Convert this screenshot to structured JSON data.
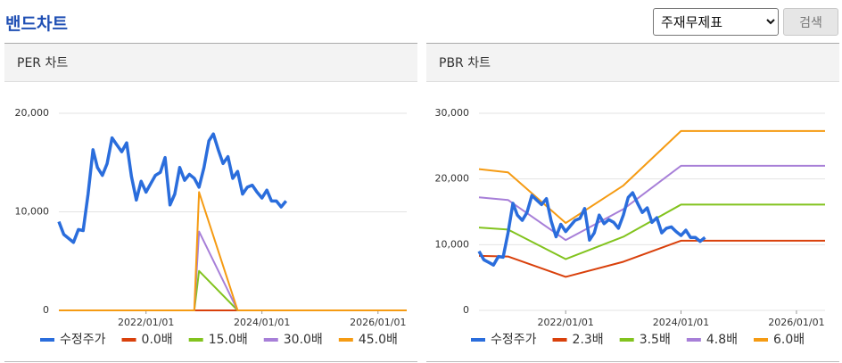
{
  "header": {
    "title": "밴드차트",
    "select": "주재무제표",
    "button": "검색"
  },
  "chart_data": [
    {
      "type": "line",
      "title": "PER 차트",
      "xlim": [
        "2020/07/01",
        "2026/07/01"
      ],
      "xticks": [
        "2022/01/01",
        "2024/01/01",
        "2026/01/01"
      ],
      "ylim": [
        0,
        20000
      ],
      "yticks": [
        0,
        {
          "value": 10000,
          "label": "10,000"
        },
        {
          "value": 20000,
          "label": "20,000"
        }
      ],
      "grid": true,
      "legend": "bottom",
      "series": [
        {
          "name": "수정주가",
          "color": "#2a6ddc",
          "x": [
            "2020/07/01",
            "2020/08/01",
            "2020/09/01",
            "2020/10/01",
            "2020/11/01",
            "2020/12/01",
            "2021/01/01",
            "2021/02/01",
            "2021/03/01",
            "2021/04/01",
            "2021/05/01",
            "2021/06/01",
            "2021/07/01",
            "2021/08/01",
            "2021/09/01",
            "2021/10/01",
            "2021/11/01",
            "2021/12/01",
            "2022/01/01",
            "2022/02/01",
            "2022/03/01",
            "2022/04/01",
            "2022/05/01",
            "2022/06/01",
            "2022/07/01",
            "2022/08/01",
            "2022/09/01",
            "2022/10/01",
            "2022/11/01",
            "2022/12/01",
            "2023/01/01",
            "2023/02/01",
            "2023/03/01",
            "2023/04/01",
            "2023/05/01",
            "2023/06/01",
            "2023/07/01",
            "2023/08/01",
            "2023/09/01",
            "2023/10/01",
            "2023/11/01",
            "2023/12/01",
            "2024/01/01",
            "2024/02/01",
            "2024/03/01",
            "2024/04/01",
            "2024/05/01",
            "2024/06/01"
          ],
          "values": [
            9000,
            7700,
            7300,
            6900,
            8200,
            8100,
            11800,
            16300,
            14500,
            13700,
            14900,
            17500,
            16800,
            16100,
            17000,
            13600,
            11200,
            13100,
            12000,
            12900,
            13700,
            14000,
            15500,
            10700,
            11800,
            14500,
            13200,
            13800,
            13400,
            12500,
            14500,
            17200,
            17900,
            16300,
            14900,
            15600,
            13400,
            14100,
            11800,
            12500,
            12700,
            12000,
            11400,
            12200,
            11100,
            11100,
            10500,
            11100
          ]
        },
        {
          "name": "0.0배",
          "color": "#d9400b",
          "x": [
            "2020/07/01",
            "2022/11/01",
            "2022/12/01",
            "2023/08/01",
            "2026/07/01"
          ],
          "values": [
            0,
            0,
            0,
            0,
            0
          ]
        },
        {
          "name": "15.0배",
          "color": "#82c31e",
          "x": [
            "2020/07/01",
            "2022/11/01",
            "2022/12/01",
            "2023/08/01",
            "2026/07/01"
          ],
          "values": [
            0,
            0,
            4000,
            0,
            0
          ]
        },
        {
          "name": "30.0배",
          "color": "#a77fd8",
          "x": [
            "2020/07/01",
            "2022/11/01",
            "2022/12/01",
            "2023/08/01",
            "2026/07/01"
          ],
          "values": [
            0,
            0,
            8000,
            0,
            0
          ]
        },
        {
          "name": "45.0배",
          "color": "#f59b13",
          "x": [
            "2020/07/01",
            "2022/11/01",
            "2022/12/01",
            "2023/08/01",
            "2026/07/01"
          ],
          "values": [
            0,
            0,
            12000,
            0,
            0
          ]
        }
      ]
    },
    {
      "type": "line",
      "title": "PBR 차트",
      "xlim": [
        "2020/07/01",
        "2026/07/01"
      ],
      "xticks": [
        "2022/01/01",
        "2024/01/01",
        "2026/01/01"
      ],
      "ylim": [
        0,
        30000
      ],
      "yticks": [
        0,
        {
          "value": 10000,
          "label": "10,000"
        },
        {
          "value": 20000,
          "label": "20,000"
        },
        {
          "value": 30000,
          "label": "30,000"
        }
      ],
      "grid": true,
      "legend": "bottom",
      "series": [
        {
          "name": "수정주가",
          "color": "#2a6ddc",
          "x": [
            "2020/07/01",
            "2020/08/01",
            "2020/09/01",
            "2020/10/01",
            "2020/11/01",
            "2020/12/01",
            "2021/01/01",
            "2021/02/01",
            "2021/03/01",
            "2021/04/01",
            "2021/05/01",
            "2021/06/01",
            "2021/07/01",
            "2021/08/01",
            "2021/09/01",
            "2021/10/01",
            "2021/11/01",
            "2021/12/01",
            "2022/01/01",
            "2022/02/01",
            "2022/03/01",
            "2022/04/01",
            "2022/05/01",
            "2022/06/01",
            "2022/07/01",
            "2022/08/01",
            "2022/09/01",
            "2022/10/01",
            "2022/11/01",
            "2022/12/01",
            "2023/01/01",
            "2023/02/01",
            "2023/03/01",
            "2023/04/01",
            "2023/05/01",
            "2023/06/01",
            "2023/07/01",
            "2023/08/01",
            "2023/09/01",
            "2023/10/01",
            "2023/11/01",
            "2023/12/01",
            "2024/01/01",
            "2024/02/01",
            "2024/03/01",
            "2024/04/01",
            "2024/05/01",
            "2024/06/01"
          ],
          "values": [
            9000,
            7700,
            7300,
            6900,
            8200,
            8100,
            11800,
            16300,
            14500,
            13700,
            14900,
            17500,
            16800,
            16100,
            17000,
            13600,
            11200,
            13100,
            12000,
            12900,
            13700,
            14000,
            15500,
            10700,
            11800,
            14500,
            13200,
            13800,
            13400,
            12500,
            14500,
            17200,
            17900,
            16300,
            14900,
            15600,
            13400,
            14100,
            11800,
            12500,
            12700,
            12000,
            11400,
            12200,
            11100,
            11100,
            10500,
            11100
          ]
        },
        {
          "name": "2.3배",
          "color": "#d9400b",
          "x": [
            "2020/07/01",
            "2021/01/01",
            "2022/01/01",
            "2023/01/01",
            "2024/01/01",
            "2026/07/01"
          ],
          "values": [
            8300,
            8200,
            5100,
            7400,
            10600,
            10600
          ]
        },
        {
          "name": "3.5배",
          "color": "#82c31e",
          "x": [
            "2020/07/01",
            "2021/01/01",
            "2022/01/01",
            "2023/01/01",
            "2024/01/01",
            "2026/07/01"
          ],
          "values": [
            12600,
            12300,
            7800,
            11200,
            16100,
            16100
          ]
        },
        {
          "name": "4.8배",
          "color": "#a77fd8",
          "x": [
            "2020/07/01",
            "2021/01/01",
            "2022/01/01",
            "2023/01/01",
            "2024/01/01",
            "2026/07/01"
          ],
          "values": [
            17200,
            16800,
            10700,
            15400,
            22000,
            22000
          ]
        },
        {
          "name": "6.0배",
          "color": "#f59b13",
          "x": [
            "2020/07/01",
            "2021/01/01",
            "2022/01/01",
            "2023/01/01",
            "2024/01/01",
            "2026/07/01"
          ],
          "values": [
            21500,
            21000,
            13300,
            19000,
            27300,
            27300
          ]
        }
      ]
    }
  ]
}
